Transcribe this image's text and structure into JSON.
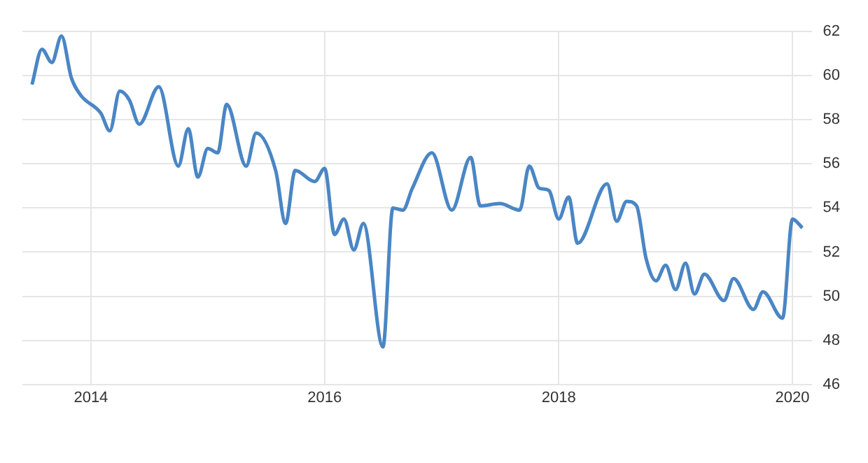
{
  "chart_data": {
    "type": "line",
    "x": [
      "2013-07",
      "2013-08",
      "2013-09",
      "2013-10",
      "2013-11",
      "2013-12",
      "2014-02",
      "2014-03",
      "2014-04",
      "2014-05",
      "2014-06",
      "2014-08",
      "2014-10",
      "2014-11",
      "2014-12",
      "2015-01",
      "2015-02",
      "2015-03",
      "2015-05",
      "2015-06",
      "2015-08",
      "2015-09",
      "2015-10",
      "2015-12",
      "2016-01",
      "2016-02",
      "2016-03",
      "2016-04",
      "2016-05",
      "2016-07",
      "2016-08",
      "2016-09",
      "2016-10",
      "2016-12",
      "2017-02",
      "2017-04",
      "2017-05",
      "2017-07",
      "2017-09",
      "2017-10",
      "2017-11",
      "2017-12",
      "2018-01",
      "2018-02",
      "2018-03",
      "2018-06",
      "2018-07",
      "2018-08",
      "2018-09",
      "2018-10",
      "2018-11",
      "2018-12",
      "2019-01",
      "2019-02",
      "2019-03",
      "2019-04",
      "2019-06",
      "2019-07",
      "2019-09",
      "2019-10",
      "2019-12",
      "2020-01",
      "2020-02"
    ],
    "series": [
      {
        "color": "#4a86c5",
        "values": [
          59.6,
          61.2,
          60.6,
          61.8,
          59.9,
          59.1,
          58.3,
          57.5,
          59.3,
          58.9,
          57.8,
          59.5,
          55.9,
          57.6,
          55.4,
          56.7,
          56.5,
          58.7,
          55.9,
          57.4,
          55.7,
          53.3,
          55.7,
          55.2,
          55.8,
          52.8,
          53.5,
          52.1,
          53.3,
          47.7,
          54.0,
          53.9,
          54.9,
          56.5,
          53.9,
          56.3,
          54.1,
          54.2,
          53.9,
          55.9,
          54.9,
          54.8,
          53.5,
          54.5,
          52.4,
          55.1,
          53.4,
          54.3,
          54.1,
          51.7,
          50.7,
          51.4,
          50.3,
          51.5,
          50.1,
          51.0,
          49.8,
          50.8,
          49.4,
          50.2,
          49.0,
          53.5,
          53.1
        ]
      }
    ],
    "xlim": [
      "2013-06",
      "2020-03"
    ],
    "xticks": [
      "2014",
      "2016",
      "2018",
      "2020"
    ],
    "ylim": [
      46,
      62
    ],
    "yticks": [
      46,
      48,
      50,
      52,
      54,
      56,
      58,
      60,
      62
    ],
    "grid": true,
    "marker": "none",
    "line_style": "solid",
    "legend": false
  }
}
